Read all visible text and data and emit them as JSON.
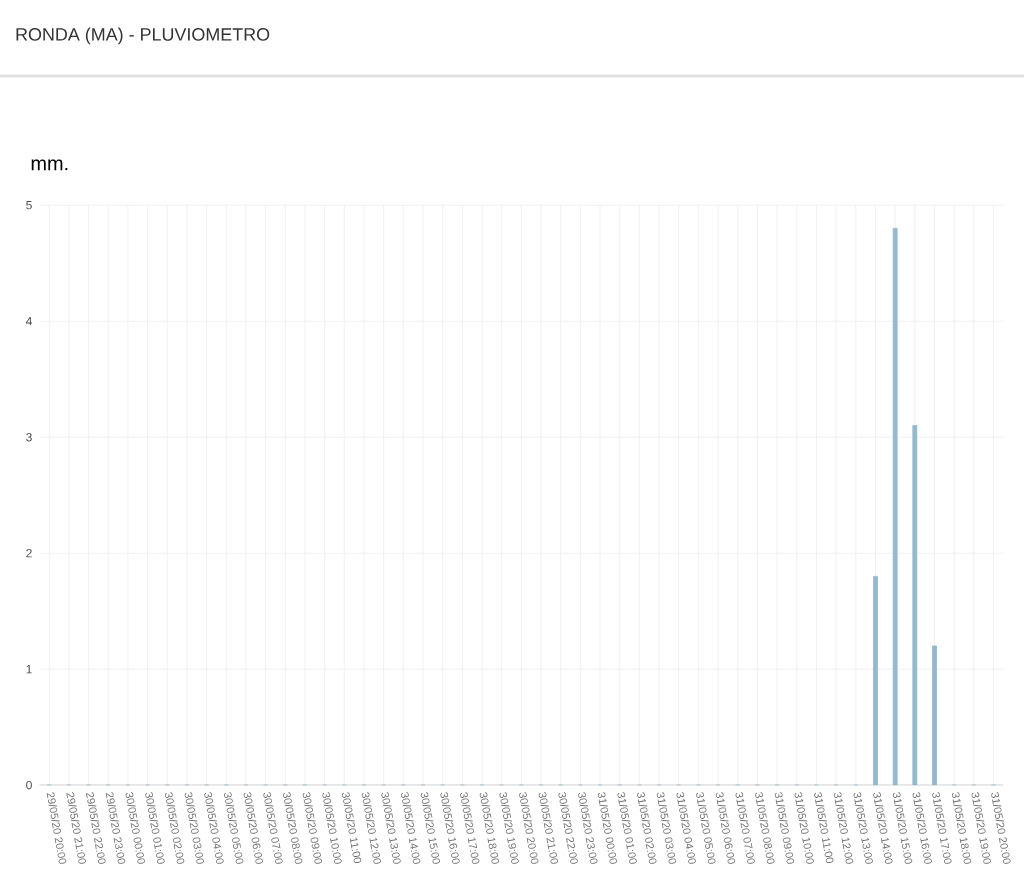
{
  "chart_data": {
    "type": "bar",
    "title": "RONDA (MA) - PLUVIOMETRO",
    "ylabel": "mm.",
    "categories": [
      "29/05/20 20:00",
      "29/05/20 21:00",
      "29/05/20 22:00",
      "29/05/20 23:00",
      "30/05/20 00:00",
      "30/05/20 01:00",
      "30/05/20 02:00",
      "30/05/20 03:00",
      "30/05/20 04:00",
      "30/05/20 05:00",
      "30/05/20 06:00",
      "30/05/20 07:00",
      "30/05/20 08:00",
      "30/05/20 09:00",
      "30/05/20 10:00",
      "30/05/20 11:00",
      "30/05/20 12:00",
      "30/05/20 13:00",
      "30/05/20 14:00",
      "30/05/20 15:00",
      "30/05/20 16:00",
      "30/05/20 17:00",
      "30/05/20 18:00",
      "30/05/20 19:00",
      "30/05/20 20:00",
      "30/05/20 21:00",
      "30/05/20 22:00",
      "30/05/20 23:00",
      "31/05/20 00:00",
      "31/05/20 01:00",
      "31/05/20 02:00",
      "31/05/20 03:00",
      "31/05/20 04:00",
      "31/05/20 05:00",
      "31/05/20 06:00",
      "31/05/20 07:00",
      "31/05/20 08:00",
      "31/05/20 09:00",
      "31/05/20 10:00",
      "31/05/20 11:00",
      "31/05/20 12:00",
      "31/05/20 13:00",
      "31/05/20 14:00",
      "31/05/20 15:00",
      "31/05/20 16:00",
      "31/05/20 17:00",
      "31/05/20 18:00",
      "31/05/20 19:00",
      "31/05/20 20:00"
    ],
    "values": [
      0,
      0,
      0,
      0,
      0,
      0,
      0,
      0,
      0,
      0,
      0,
      0,
      0,
      0,
      0,
      0,
      0,
      0,
      0,
      0,
      0,
      0,
      0,
      0,
      0,
      0,
      0,
      0,
      0,
      0,
      0,
      0,
      0,
      0,
      0,
      0,
      0,
      0,
      0,
      0,
      0,
      0,
      1.8,
      4.8,
      3.1,
      1.2,
      0,
      0,
      0
    ],
    "color": "#94b8cc",
    "ylim": [
      0,
      5
    ],
    "yticks": [
      0,
      1,
      2,
      3,
      4,
      5
    ],
    "grid": true
  }
}
